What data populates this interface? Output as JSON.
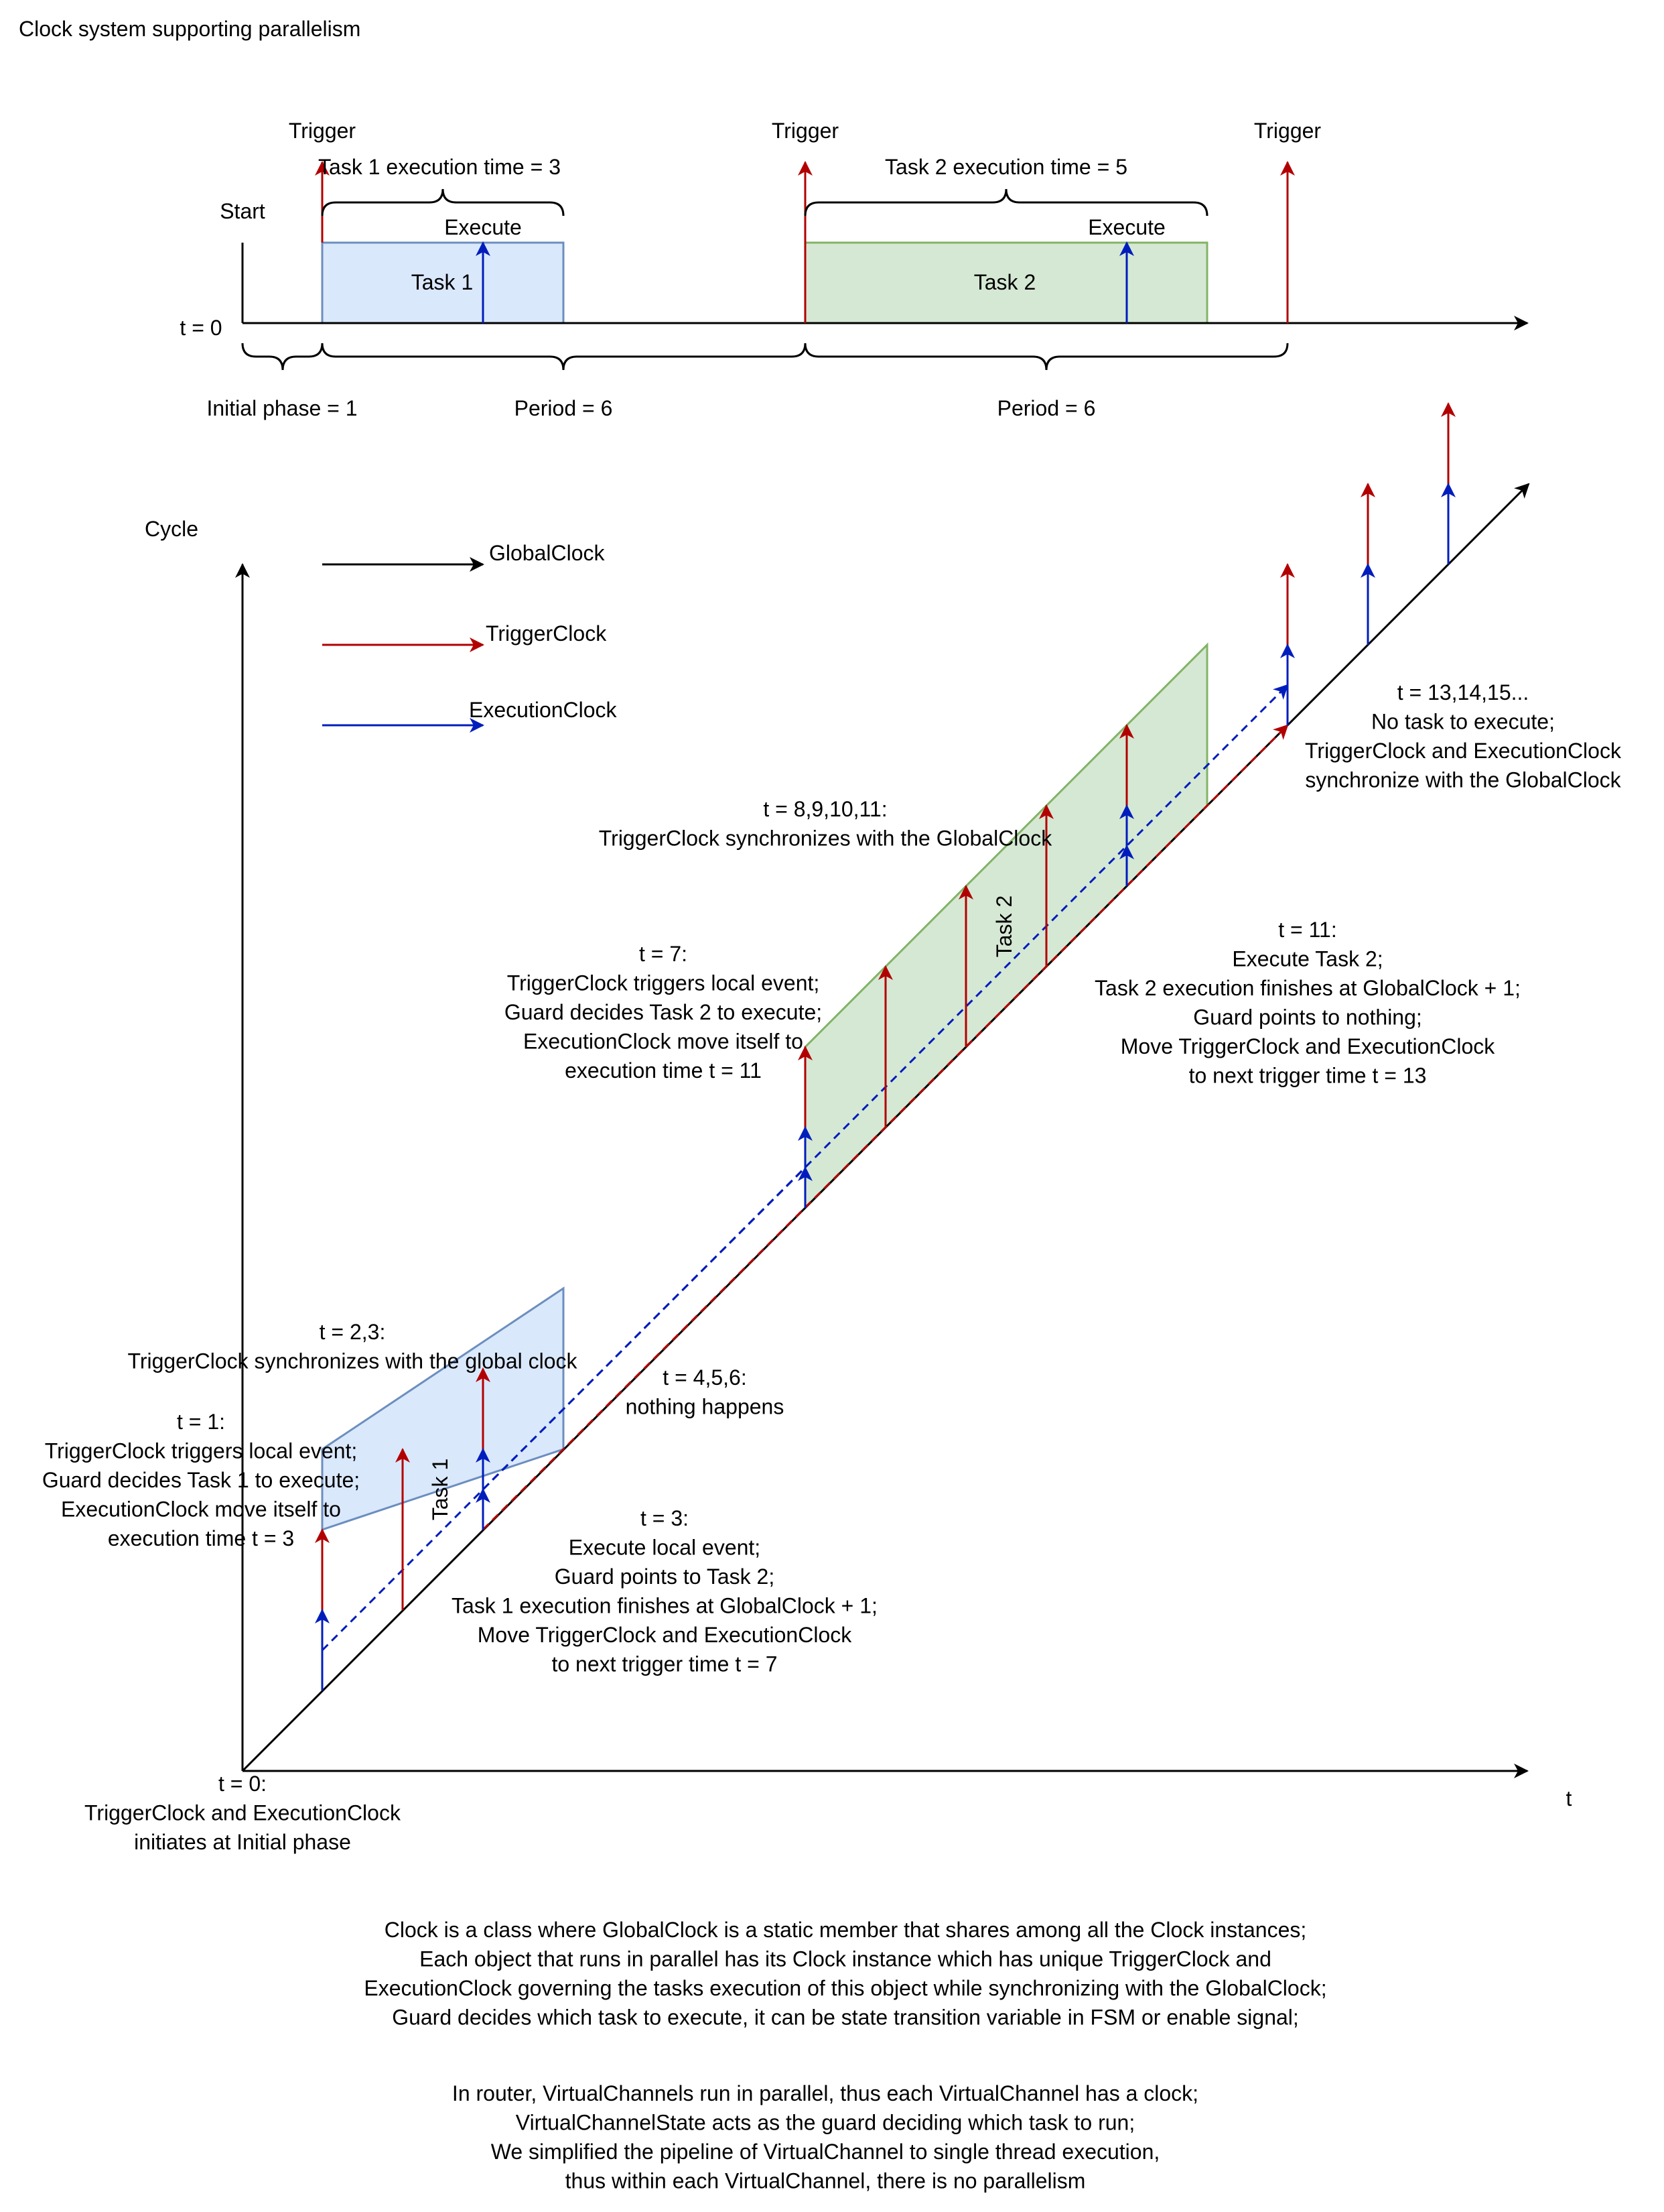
{
  "title": "Clock system supporting parallelism",
  "timeline": {
    "trigger_label": "Trigger",
    "start_label": "Start",
    "execute_label": "Execute",
    "t0_label": "t = 0",
    "task1_label": "Task 1",
    "task2_label": "Task 2",
    "task1_exec_time": "Task 1 execution time = 3",
    "task2_exec_time": "Task 2 execution time = 5",
    "initial_phase": "Initial phase = 1",
    "period1": "Period = 6",
    "period2": "Period = 6"
  },
  "legend": {
    "global": "GlobalClock",
    "trigger": "TriggerClock",
    "execution": "ExecutionClock"
  },
  "axes": {
    "y_label": "Cycle",
    "x_label": "t"
  },
  "annotations": {
    "t0": [
      "t = 0:",
      "TriggerClock and ExecutionClock",
      "initiates at Initial phase"
    ],
    "t1": [
      "t = 1:",
      "TriggerClock triggers local event;",
      "Guard decides Task 1 to execute;",
      "ExecutionClock move itself to",
      "execution time t = 3"
    ],
    "t23": [
      "t = 2,3:",
      "TriggerClock synchronizes with the global clock"
    ],
    "t3": [
      "t = 3:",
      "Execute local event;",
      "Guard points to Task 2;",
      "Task 1 execution finishes at GlobalClock + 1;",
      "Move TriggerClock and ExecutionClock",
      "to next trigger time t = 7"
    ],
    "t456": [
      "t = 4,5,6:",
      "nothing happens"
    ],
    "t7": [
      "t = 7:",
      "TriggerClock triggers local event;",
      "Guard decides Task 2 to execute;",
      "ExecutionClock move itself to",
      "execution time t = 11"
    ],
    "t8_11": [
      "t = 8,9,10,11:",
      "TriggerClock synchronizes with the GlobalClock"
    ],
    "t11": [
      "t = 11:",
      "Execute Task 2;",
      "Task 2 execution finishes at GlobalClock + 1;",
      "Guard points to nothing;",
      "Move TriggerClock and ExecutionClock",
      "to next trigger time t = 13"
    ],
    "t13": [
      "t = 13,14,15...",
      "No task to execute;",
      "TriggerClock and ExecutionClock",
      "synchronize with the GlobalClock"
    ]
  },
  "diagonal_task_labels": {
    "task1": "Task 1",
    "task2": "Task 2"
  },
  "footer": {
    "paragraph1": [
      "Clock is a class where GlobalClock is a static member that shares among all the Clock instances;",
      "Each object that runs in parallel has its Clock instance which has unique TriggerClock and",
      "ExecutionClock governing the tasks execution of this object while synchronizing with the GlobalClock;",
      "Guard decides which task to execute, it can be state transition variable in FSM or enable signal;"
    ],
    "paragraph2": [
      "In router, VirtualChannels run in parallel, thus each VirtualChannel has a clock;",
      "VirtualChannelState acts as the guard deciding which task to run;",
      "We simplified the pipeline of VirtualChannel to single thread execution,",
      "thus within each VirtualChannel, there is no parallelism"
    ]
  },
  "colors": {
    "global": "#000000",
    "trigger": "#B20000",
    "execution": "#001DBC",
    "task1_fill": "#DAE8FC",
    "task1_stroke": "#6C8EBF",
    "task2_fill": "#D5E8D4",
    "task2_stroke": "#82B366"
  }
}
